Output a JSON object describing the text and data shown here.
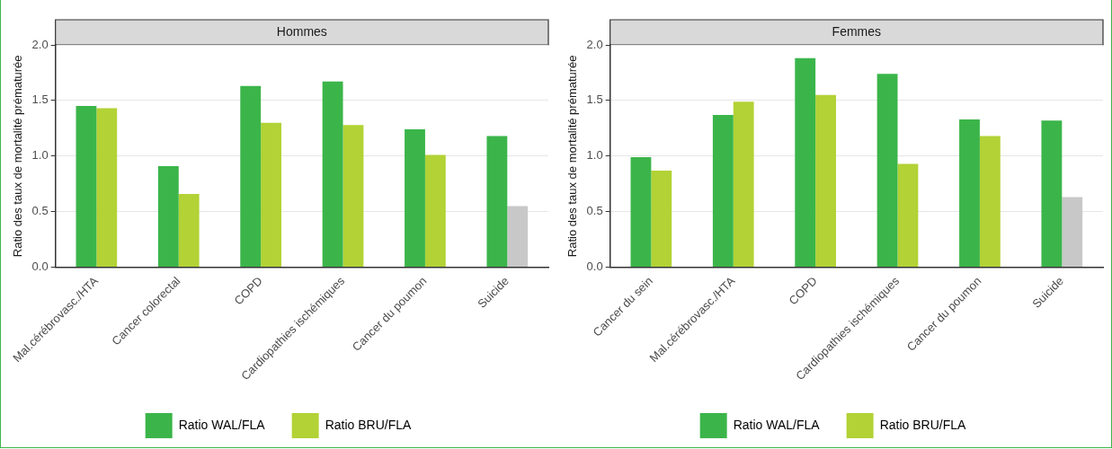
{
  "chart_data": [
    {
      "type": "bar",
      "title": "Hommes",
      "ylabel": "Ratio des taux de mortalité prématurée",
      "categories": [
        "Mal.cérébrovasc./HTA",
        "Cancer colorectal",
        "COPD",
        "Cardiopathies ischémiques",
        "Cancer du poumon",
        "Suicide"
      ],
      "series": [
        {
          "name": "Ratio WAL/FLA",
          "color": "#3bb54a",
          "values": [
            1.45,
            0.91,
            1.63,
            1.67,
            1.24,
            1.18
          ]
        },
        {
          "name": "Ratio BRU/FLA",
          "color": "#b2d235",
          "colors": [
            "#b2d235",
            "#b2d235",
            "#b2d235",
            "#b2d235",
            "#b2d235",
            "#c8c8c8"
          ],
          "values": [
            1.43,
            0.66,
            1.3,
            1.28,
            1.01,
            0.55
          ]
        }
      ],
      "ylim": [
        0,
        2
      ],
      "yticks": [
        {
          "value": 0,
          "label": "0.0"
        },
        {
          "value": 0.5,
          "label": "0.5"
        },
        {
          "value": 1,
          "label": "1.0"
        },
        {
          "value": 1.5,
          "label": "1.5"
        },
        {
          "value": 2,
          "label": "2.0"
        }
      ],
      "grid": "y",
      "legend": "bottom"
    },
    {
      "type": "bar",
      "title": "Femmes",
      "ylabel": "Ratio des taux de mortalité prématurée",
      "categories": [
        "Cancer du sein",
        "Mal.cérébrovasc./HTA",
        "COPD",
        "Cardiopathies ischémiques",
        "Cancer du poumon",
        "Suicide"
      ],
      "series": [
        {
          "name": "Ratio WAL/FLA",
          "color": "#3bb54a",
          "values": [
            0.99,
            1.37,
            1.88,
            1.74,
            1.33,
            1.32
          ]
        },
        {
          "name": "Ratio BRU/FLA",
          "color": "#b2d235",
          "colors": [
            "#b2d235",
            "#b2d235",
            "#b2d235",
            "#b2d235",
            "#b2d235",
            "#c8c8c8"
          ],
          "values": [
            0.87,
            1.49,
            1.55,
            0.93,
            1.18,
            0.63
          ]
        }
      ],
      "ylim": [
        0,
        2
      ],
      "yticks": [
        {
          "value": 0,
          "label": "0.0"
        },
        {
          "value": 0.5,
          "label": "0.5"
        },
        {
          "value": 1,
          "label": "1.0"
        },
        {
          "value": 1.5,
          "label": "1.5"
        },
        {
          "value": 2,
          "label": "2.0"
        }
      ],
      "grid": "y",
      "legend": "bottom"
    }
  ]
}
